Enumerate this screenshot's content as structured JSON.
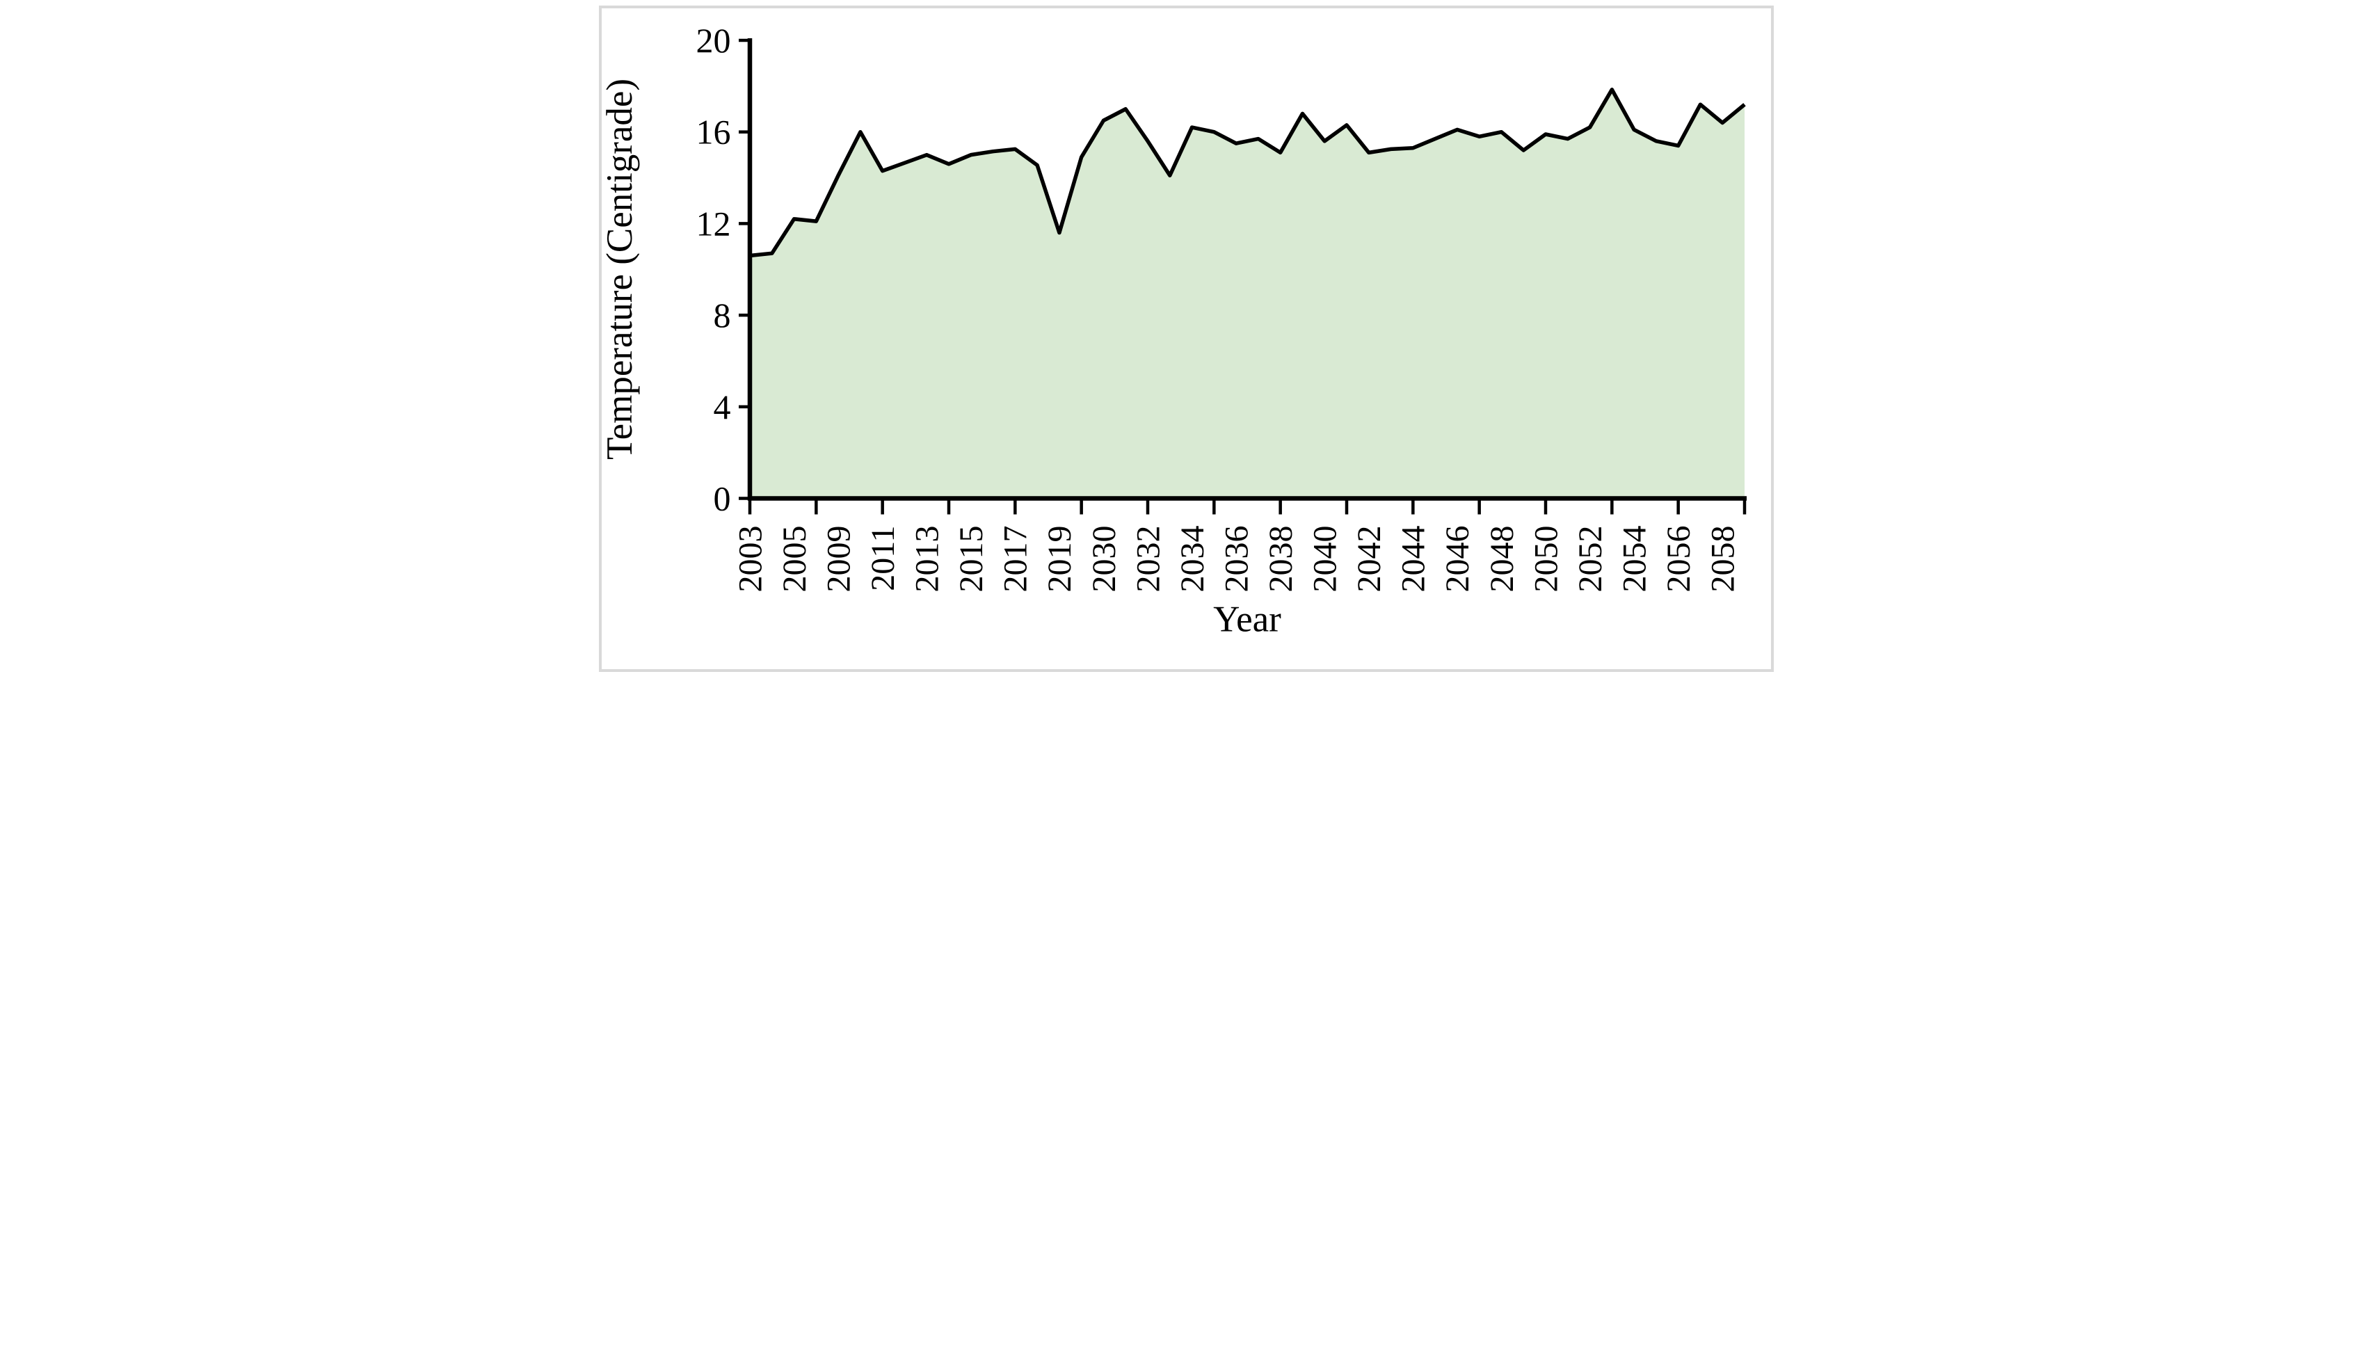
{
  "figure": {
    "background": "#ffffff",
    "frame_color": "#d9d9d9"
  },
  "chart_data": {
    "type": "area",
    "title": "",
    "xlabel": "Year",
    "ylabel": "Temperature (Centigrade)",
    "ylim": [
      0,
      20
    ],
    "yticks": [
      0,
      4,
      8,
      12,
      16,
      20
    ],
    "grid": "off",
    "legend": "none",
    "area_fill": "#d9ead3",
    "line_color": "#000000",
    "axis_color": "#000000",
    "text_color": "#000000",
    "label_interval": 2,
    "tick_interval": 3,
    "x": [
      2003,
      2004,
      2005,
      2006,
      2009,
      2010,
      2011,
      2012,
      2013,
      2014,
      2015,
      2016,
      2017,
      2018,
      2019,
      2020,
      2030,
      2031,
      2032,
      2033,
      2034,
      2035,
      2036,
      2037,
      2038,
      2039,
      2040,
      2041,
      2042,
      2043,
      2044,
      2045,
      2046,
      2047,
      2048,
      2049,
      2050,
      2051,
      2052,
      2053,
      2054,
      2055,
      2056,
      2057,
      2058,
      2059
    ],
    "values": [
      10.6,
      10.7,
      12.2,
      12.1,
      14.1,
      16.0,
      14.3,
      14.65,
      15.0,
      14.6,
      15.0,
      15.15,
      15.25,
      14.55,
      11.6,
      14.9,
      16.5,
      17.0,
      15.6,
      14.1,
      16.2,
      16.0,
      15.5,
      15.7,
      15.1,
      16.8,
      15.6,
      16.3,
      15.1,
      15.25,
      15.3,
      15.7,
      16.1,
      15.8,
      16.0,
      15.2,
      15.9,
      15.7,
      16.2,
      17.85,
      16.1,
      15.6,
      15.4,
      17.2,
      16.4,
      17.2
    ],
    "x_tick_labels_visible": [
      "2003",
      "2005",
      "2009",
      "2011",
      "2013",
      "2015",
      "2017",
      "2019",
      "2030",
      "2032",
      "2034",
      "2036",
      "2038",
      "2040",
      "2042",
      "2044",
      "2046",
      "2048",
      "2050",
      "2052",
      "2054",
      "2056",
      "2058"
    ]
  }
}
